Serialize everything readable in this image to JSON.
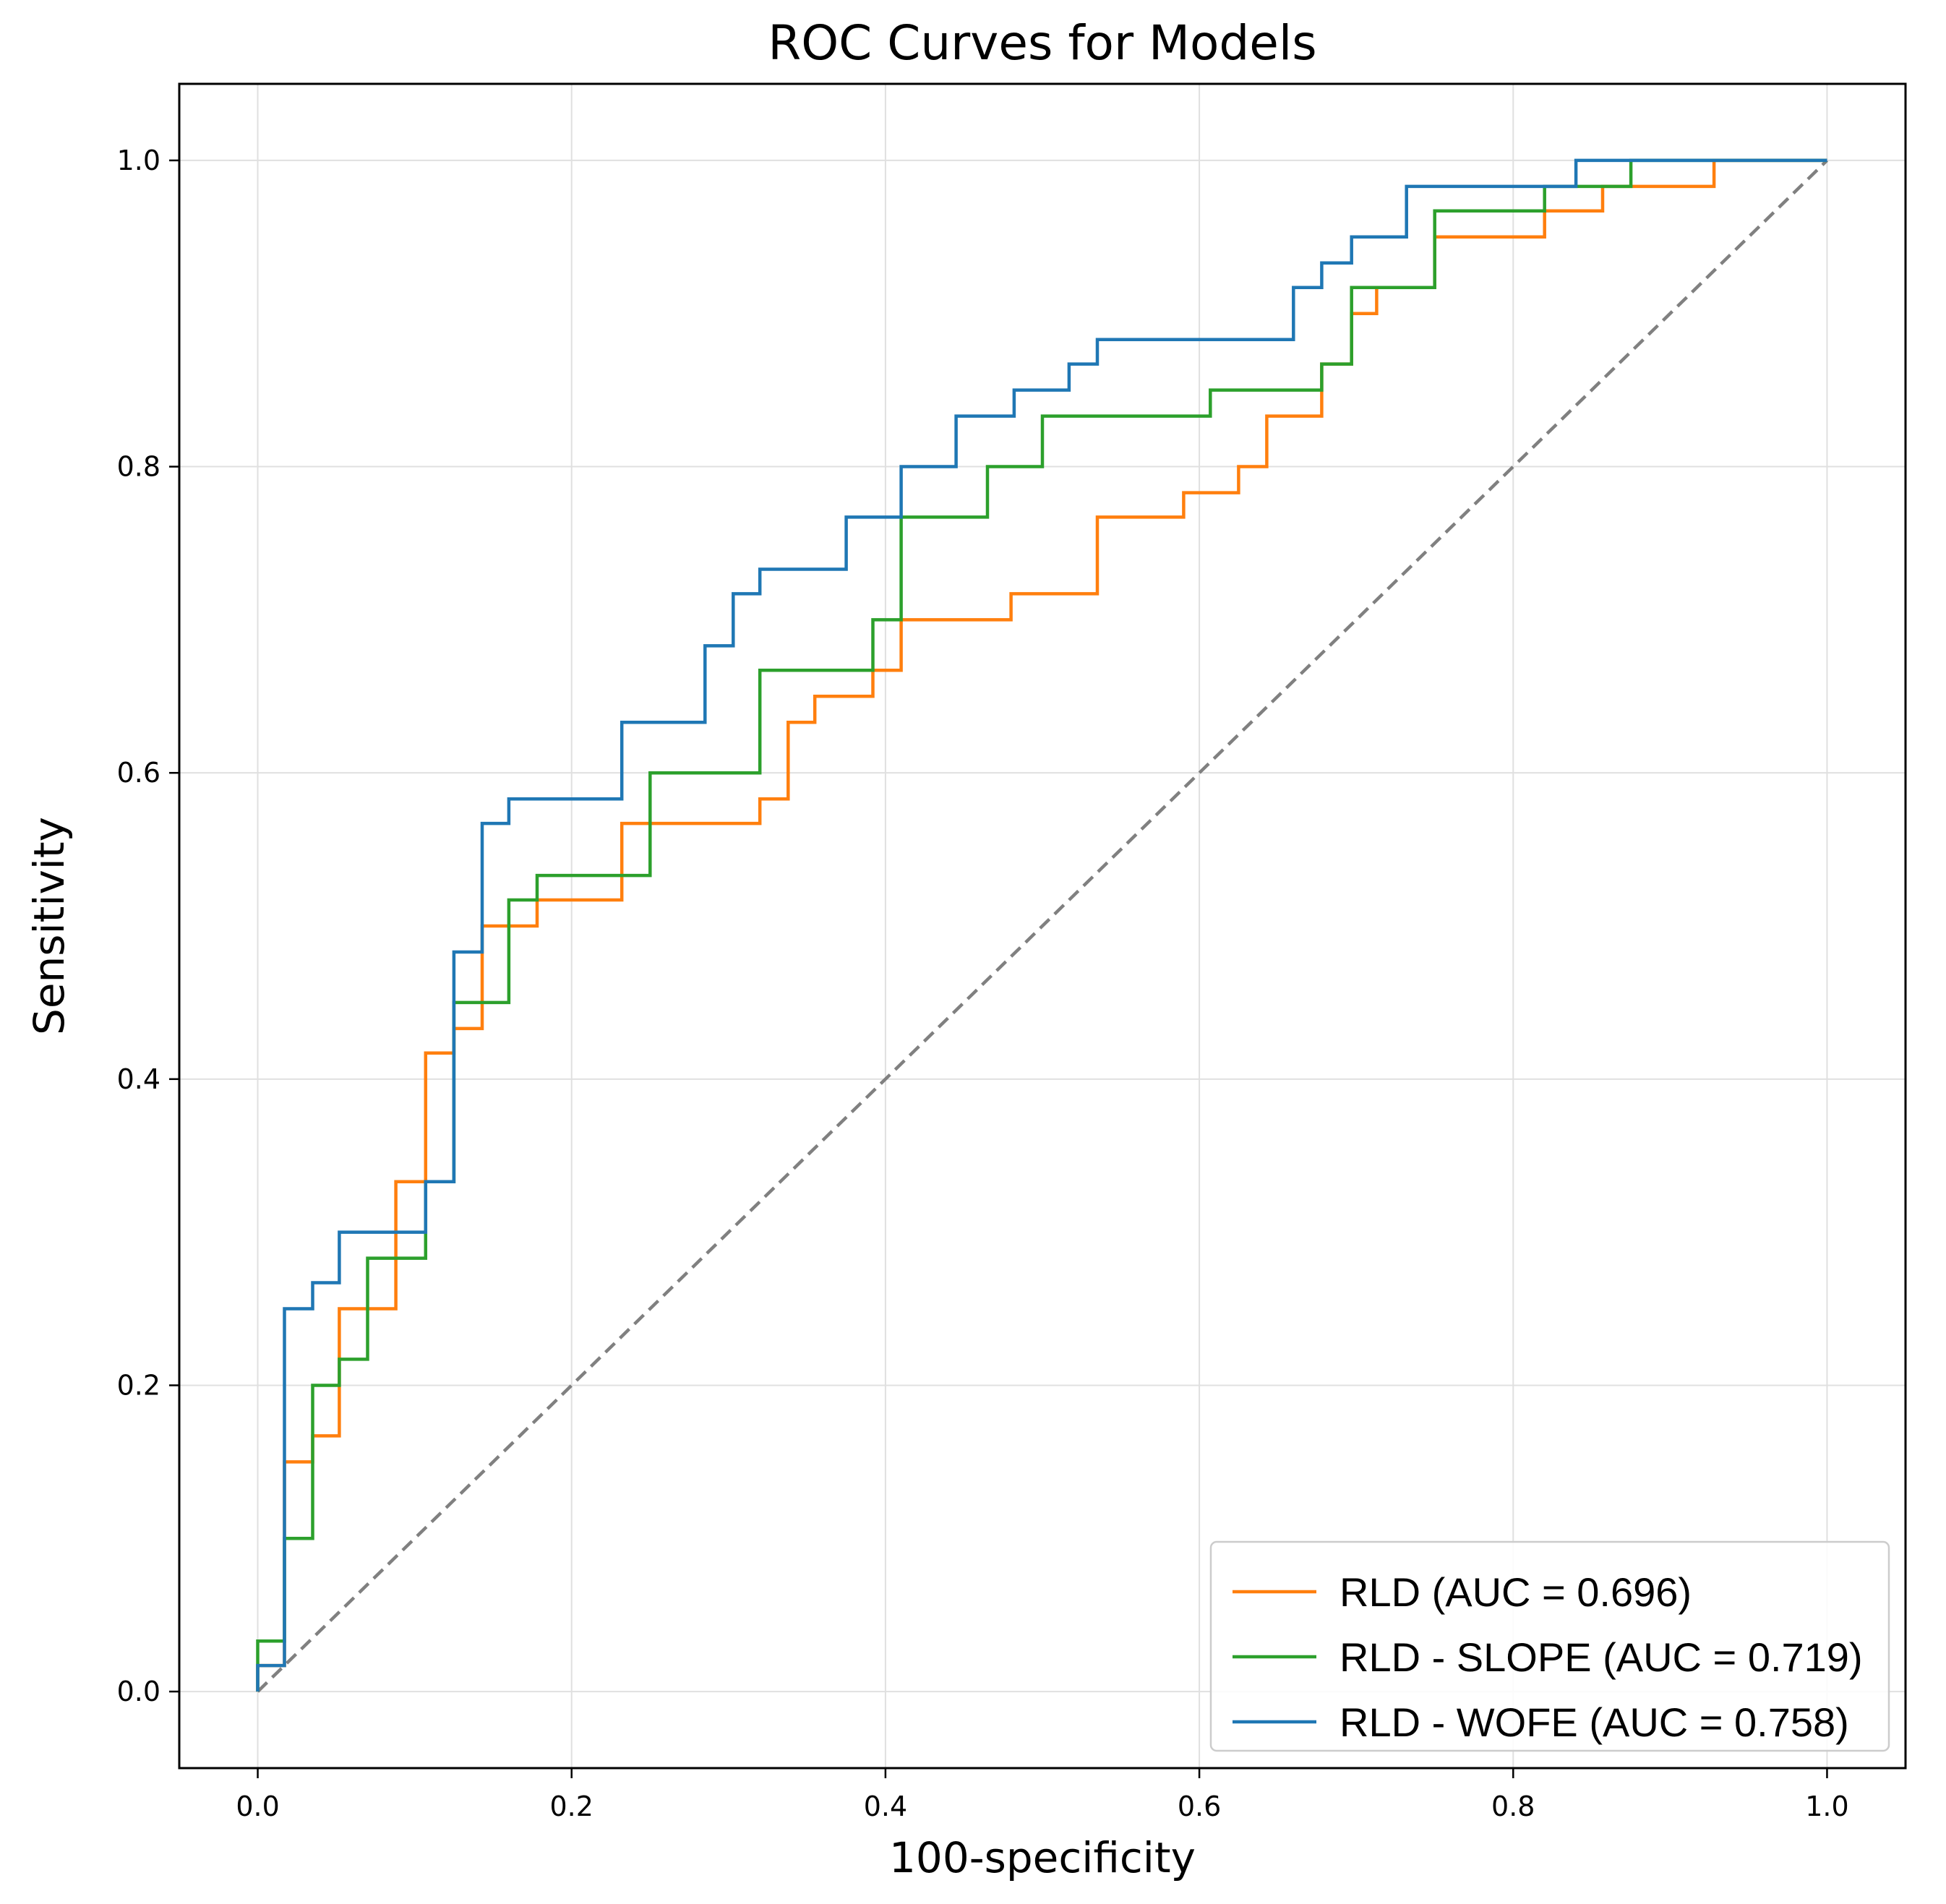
{
  "chart_data": {
    "type": "line",
    "title": "ROC Curves for Models",
    "xlabel": "100-specificity",
    "ylabel": "Sensitivity",
    "xlim": [
      -0.05,
      1.05
    ],
    "ylim": [
      -0.05,
      1.05
    ],
    "xticks": [
      0.0,
      0.2,
      0.4,
      0.6,
      0.8,
      1.0
    ],
    "yticks": [
      0.0,
      0.2,
      0.4,
      0.6,
      0.8,
      1.0
    ],
    "tick_labels": [
      "0.0",
      "0.2",
      "0.4",
      "0.6",
      "0.8",
      "1.0"
    ],
    "grid": true,
    "legend_position": "lower-right",
    "reference_line": {
      "x": [
        0,
        1
      ],
      "y": [
        0,
        1
      ],
      "style": "dashed",
      "color": "#808080"
    },
    "series": [
      {
        "name": "RLD (AUC = 0.696)",
        "color": "#ff7f0e",
        "points": [
          [
            0,
            0
          ],
          [
            0,
            0.017
          ],
          [
            0.017,
            0.017
          ],
          [
            0.017,
            0.15
          ],
          [
            0.035,
            0.15
          ],
          [
            0.035,
            0.167
          ],
          [
            0.052,
            0.167
          ],
          [
            0.052,
            0.25
          ],
          [
            0.088,
            0.25
          ],
          [
            0.088,
            0.333
          ],
          [
            0.107,
            0.333
          ],
          [
            0.107,
            0.417
          ],
          [
            0.125,
            0.417
          ],
          [
            0.125,
            0.433
          ],
          [
            0.143,
            0.433
          ],
          [
            0.143,
            0.5
          ],
          [
            0.178,
            0.5
          ],
          [
            0.178,
            0.517
          ],
          [
            0.232,
            0.517
          ],
          [
            0.232,
            0.567
          ],
          [
            0.32,
            0.567
          ],
          [
            0.32,
            0.583
          ],
          [
            0.338,
            0.583
          ],
          [
            0.338,
            0.633
          ],
          [
            0.355,
            0.633
          ],
          [
            0.355,
            0.65
          ],
          [
            0.392,
            0.65
          ],
          [
            0.392,
            0.667
          ],
          [
            0.41,
            0.667
          ],
          [
            0.41,
            0.7
          ],
          [
            0.48,
            0.7
          ],
          [
            0.48,
            0.717
          ],
          [
            0.535,
            0.717
          ],
          [
            0.535,
            0.767
          ],
          [
            0.59,
            0.767
          ],
          [
            0.59,
            0.783
          ],
          [
            0.625,
            0.783
          ],
          [
            0.625,
            0.8
          ],
          [
            0.643,
            0.8
          ],
          [
            0.643,
            0.833
          ],
          [
            0.678,
            0.833
          ],
          [
            0.678,
            0.867
          ],
          [
            0.697,
            0.867
          ],
          [
            0.697,
            0.9
          ],
          [
            0.713,
            0.9
          ],
          [
            0.713,
            0.917
          ],
          [
            0.75,
            0.917
          ],
          [
            0.75,
            0.95
          ],
          [
            0.82,
            0.95
          ],
          [
            0.82,
            0.967
          ],
          [
            0.857,
            0.967
          ],
          [
            0.857,
            0.983
          ],
          [
            0.928,
            0.983
          ],
          [
            0.928,
            1.0
          ],
          [
            1.0,
            1.0
          ]
        ]
      },
      {
        "name": "RLD - SLOPE (AUC = 0.719)",
        "color": "#2ca02c",
        "points": [
          [
            0,
            0
          ],
          [
            0,
            0.033
          ],
          [
            0.017,
            0.033
          ],
          [
            0.017,
            0.1
          ],
          [
            0.035,
            0.1
          ],
          [
            0.035,
            0.2
          ],
          [
            0.052,
            0.2
          ],
          [
            0.052,
            0.217
          ],
          [
            0.07,
            0.217
          ],
          [
            0.07,
            0.283
          ],
          [
            0.107,
            0.283
          ],
          [
            0.107,
            0.333
          ],
          [
            0.125,
            0.333
          ],
          [
            0.125,
            0.45
          ],
          [
            0.16,
            0.45
          ],
          [
            0.16,
            0.517
          ],
          [
            0.178,
            0.517
          ],
          [
            0.178,
            0.533
          ],
          [
            0.25,
            0.533
          ],
          [
            0.25,
            0.6
          ],
          [
            0.32,
            0.6
          ],
          [
            0.32,
            0.667
          ],
          [
            0.392,
            0.667
          ],
          [
            0.392,
            0.7
          ],
          [
            0.41,
            0.7
          ],
          [
            0.41,
            0.767
          ],
          [
            0.465,
            0.767
          ],
          [
            0.465,
            0.8
          ],
          [
            0.5,
            0.8
          ],
          [
            0.5,
            0.833
          ],
          [
            0.607,
            0.833
          ],
          [
            0.607,
            0.85
          ],
          [
            0.678,
            0.85
          ],
          [
            0.678,
            0.867
          ],
          [
            0.697,
            0.867
          ],
          [
            0.697,
            0.917
          ],
          [
            0.75,
            0.917
          ],
          [
            0.75,
            0.967
          ],
          [
            0.82,
            0.967
          ],
          [
            0.82,
            0.983
          ],
          [
            0.875,
            0.983
          ],
          [
            0.875,
            1.0
          ],
          [
            1.0,
            1.0
          ]
        ]
      },
      {
        "name": "RLD - WOFE (AUC = 0.758)",
        "color": "#1f77b4",
        "points": [
          [
            0,
            0
          ],
          [
            0,
            0.017
          ],
          [
            0.017,
            0.017
          ],
          [
            0.017,
            0.15
          ],
          [
            0.017,
            0.25
          ],
          [
            0.035,
            0.25
          ],
          [
            0.035,
            0.267
          ],
          [
            0.052,
            0.267
          ],
          [
            0.052,
            0.3
          ],
          [
            0.107,
            0.3
          ],
          [
            0.107,
            0.333
          ],
          [
            0.125,
            0.333
          ],
          [
            0.125,
            0.483
          ],
          [
            0.143,
            0.483
          ],
          [
            0.143,
            0.567
          ],
          [
            0.16,
            0.567
          ],
          [
            0.16,
            0.583
          ],
          [
            0.232,
            0.583
          ],
          [
            0.232,
            0.633
          ],
          [
            0.285,
            0.633
          ],
          [
            0.285,
            0.683
          ],
          [
            0.303,
            0.683
          ],
          [
            0.303,
            0.717
          ],
          [
            0.32,
            0.717
          ],
          [
            0.32,
            0.733
          ],
          [
            0.375,
            0.733
          ],
          [
            0.375,
            0.767
          ],
          [
            0.41,
            0.767
          ],
          [
            0.41,
            0.8
          ],
          [
            0.445,
            0.8
          ],
          [
            0.445,
            0.833
          ],
          [
            0.482,
            0.833
          ],
          [
            0.482,
            0.85
          ],
          [
            0.517,
            0.85
          ],
          [
            0.517,
            0.867
          ],
          [
            0.535,
            0.867
          ],
          [
            0.535,
            0.883
          ],
          [
            0.66,
            0.883
          ],
          [
            0.66,
            0.917
          ],
          [
            0.678,
            0.917
          ],
          [
            0.678,
            0.933
          ],
          [
            0.697,
            0.933
          ],
          [
            0.697,
            0.95
          ],
          [
            0.732,
            0.95
          ],
          [
            0.732,
            0.983
          ],
          [
            0.84,
            0.983
          ],
          [
            0.84,
            1.0
          ],
          [
            1.0,
            1.0
          ]
        ]
      }
    ]
  }
}
